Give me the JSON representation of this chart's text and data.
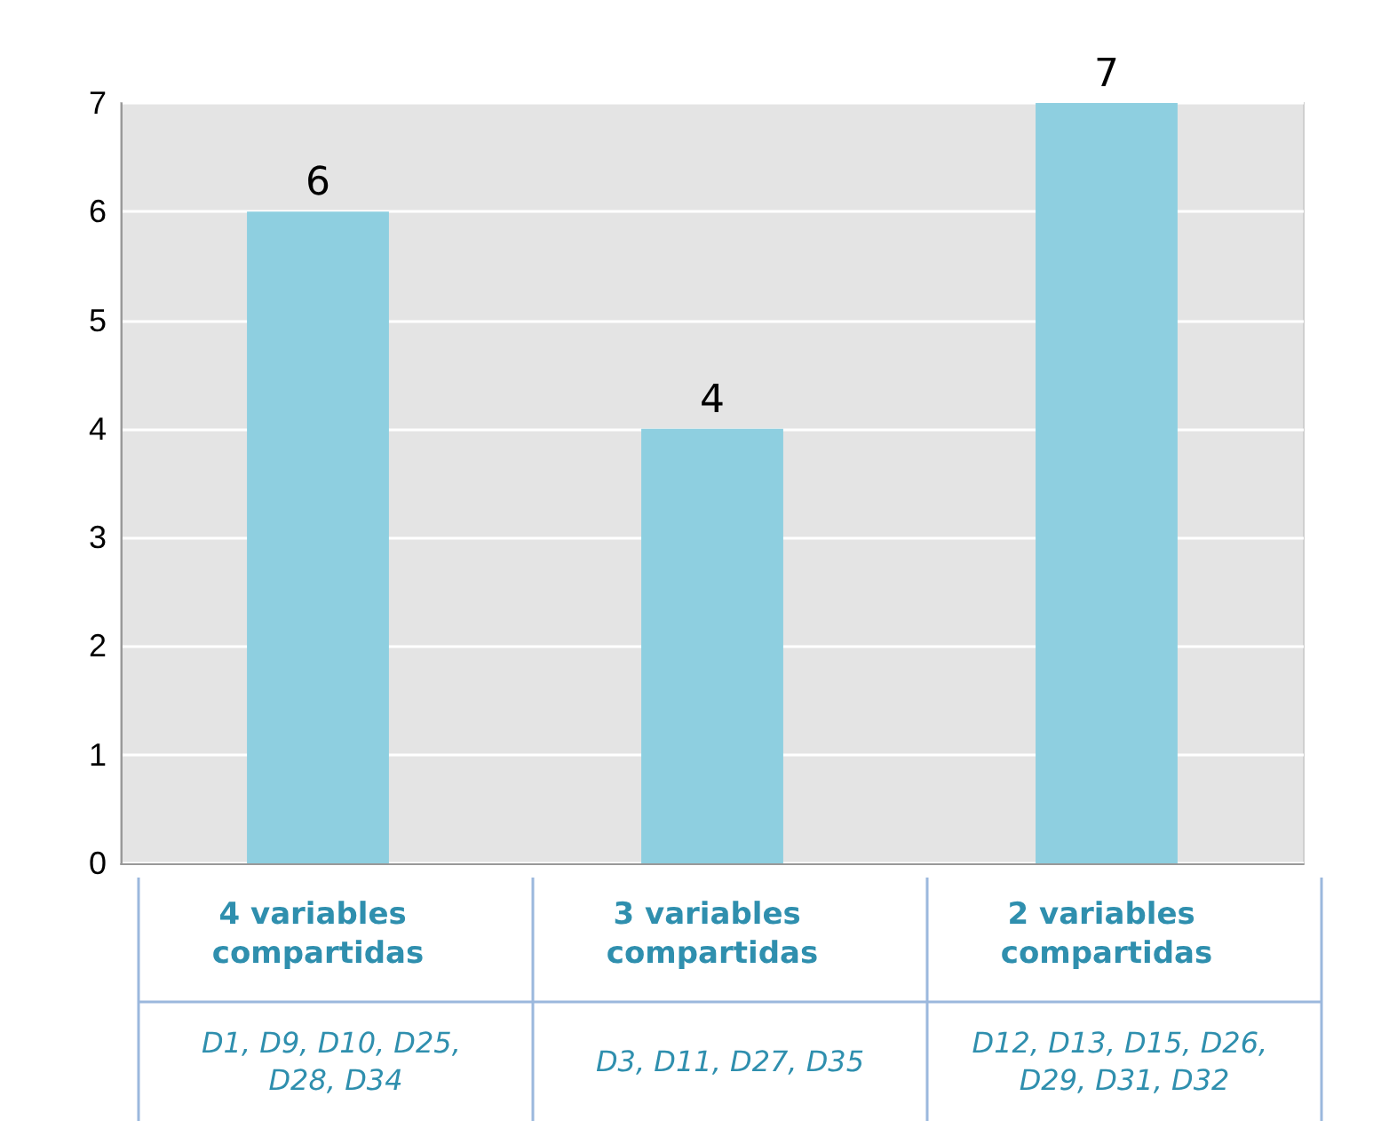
{
  "chart_data": {
    "type": "bar",
    "categories": [
      "4 variables compartidas",
      "3 variables compartidas",
      "2 variables compartidas"
    ],
    "values": [
      6,
      4,
      7
    ],
    "color": "#8ecfe0",
    "ylim": [
      0,
      7
    ],
    "yticks": [
      0,
      1,
      2,
      3,
      4,
      5,
      6,
      7
    ],
    "grid": "y",
    "data_labels": true,
    "annotations": [
      "D1, D9, D10, D25, D28, D34",
      "D3, D11, D27, D35",
      "D12, D13, D15, D26, D29, D31, D32"
    ]
  }
}
